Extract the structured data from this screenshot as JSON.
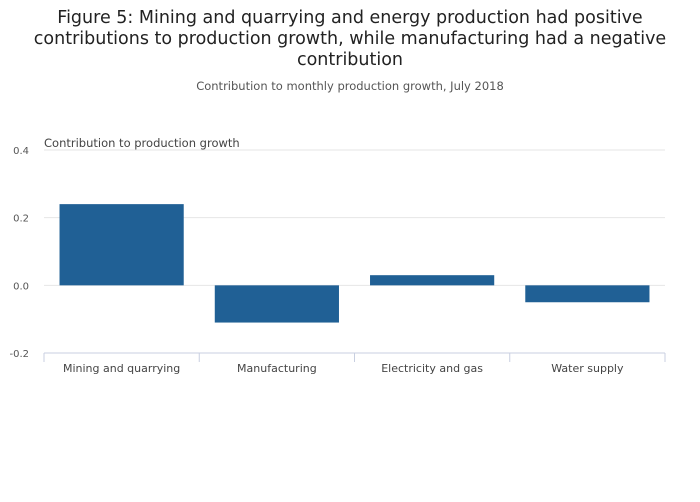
{
  "title": "Figure 5: Mining and quarrying and energy production had positive contributions to production growth, while manufacturing had a negative contribution",
  "subtitle": "Contribution to monthly production growth, July 2018",
  "chart_data": {
    "type": "bar",
    "title": "Figure 5: Mining and quarrying and energy production had positive contributions to production growth, while manufacturing had a negative contribution",
    "subtitle": "Contribution to monthly production growth, July 2018",
    "xlabel": "",
    "ylabel": "Contribution to production growth",
    "categories": [
      "Mining and quarrying",
      "Manufacturing",
      "Electricity and gas",
      "Water supply"
    ],
    "values": [
      0.24,
      -0.11,
      0.03,
      -0.05
    ],
    "ylim": [
      -0.2,
      0.4
    ],
    "yticks": [
      0.4,
      0.2,
      0.0,
      -0.2
    ],
    "ytick_labels": [
      "0.4",
      "0.2",
      "0.0",
      "-0.2"
    ],
    "bar_color": "#206095",
    "grid": true,
    "legend": "none"
  }
}
